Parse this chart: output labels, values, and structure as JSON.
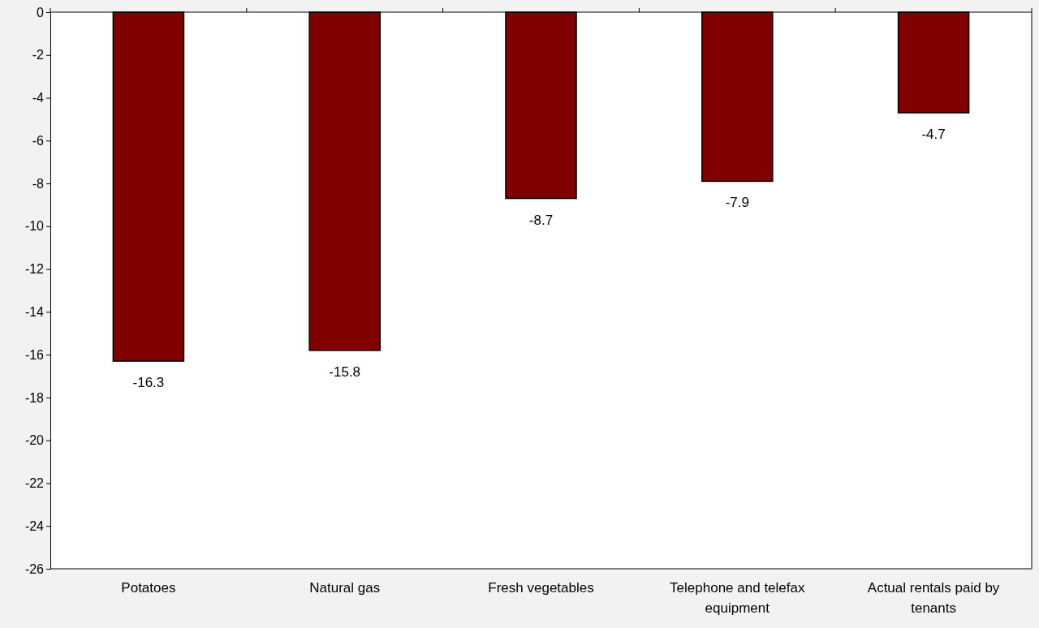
{
  "chart_data": {
    "type": "bar",
    "categories": [
      "Potatoes",
      "Natural gas",
      "Fresh vegetables",
      "Telephone and telefax equipment",
      "Actual rentals paid by tenants"
    ],
    "values": [
      -16.3,
      -15.8,
      -8.7,
      -7.9,
      -4.7
    ],
    "color": "#800000",
    "ylim": [
      -26,
      0
    ],
    "yticks": [
      0,
      -2,
      -4,
      -6,
      -8,
      -10,
      -12,
      -14,
      -16,
      -18,
      -20,
      -22,
      -24,
      -26
    ],
    "data_labels": true
  }
}
